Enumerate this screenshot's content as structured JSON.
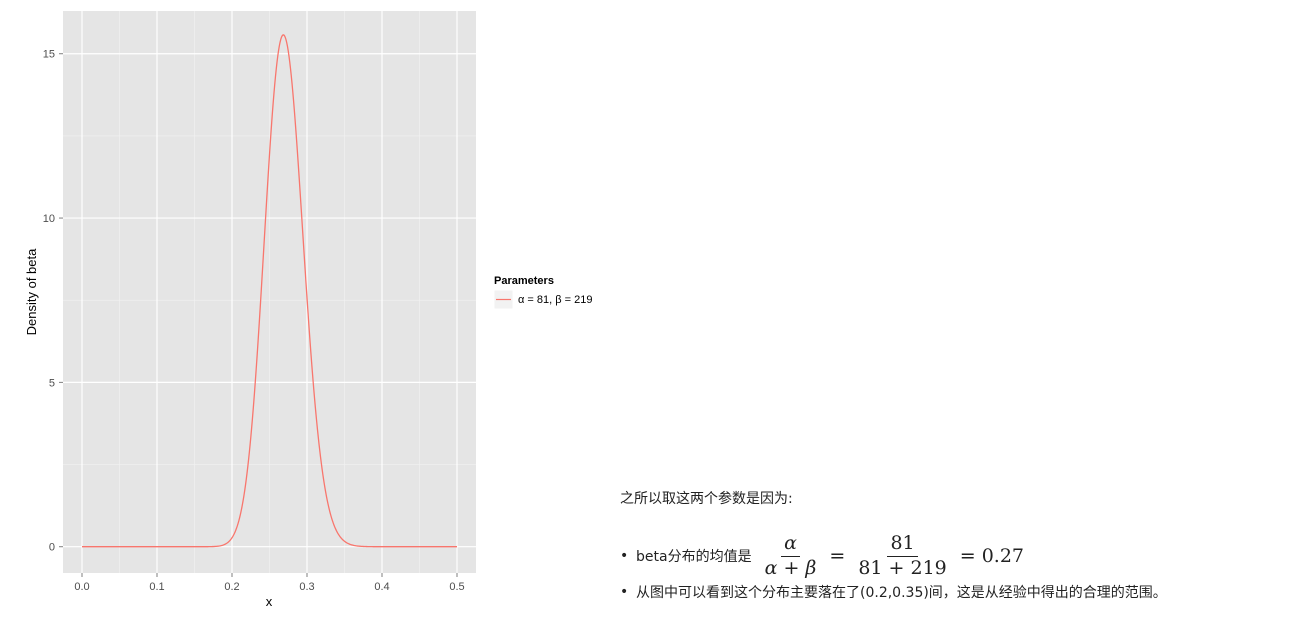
{
  "chart_data": {
    "type": "line",
    "distribution": "beta",
    "xlabel": "x",
    "ylabel": "Density of beta",
    "xlim": [
      0.0,
      0.5
    ],
    "ylim": [
      -0.8,
      16.3
    ],
    "x_ticks": [
      0.0,
      0.1,
      0.2,
      0.3,
      0.4,
      0.5
    ],
    "x_tick_labels": [
      "0.0",
      "0.1",
      "0.2",
      "0.3",
      "0.4",
      "0.5"
    ],
    "y_ticks": [
      0,
      5,
      10,
      15
    ],
    "y_tick_labels": [
      "0",
      "5",
      "10",
      "15"
    ],
    "grid": true,
    "background": "#e5e5e5",
    "legend": {
      "title": "Parameters",
      "position": "right",
      "entries": [
        {
          "label": "α = 81, β = 219",
          "color": "#f8766d"
        }
      ]
    },
    "series": [
      {
        "name": "α = 81, β = 219",
        "color": "#f8766d",
        "alpha": 81,
        "beta": 219
      }
    ]
  },
  "notes": {
    "intro": "之所以取这两个参数是因为:",
    "bullet1_text": "beta分布的均值是",
    "formula": {
      "frac1_num": "α",
      "frac1_den": "α + β",
      "equals1": "=",
      "frac2_num": "81",
      "frac2_den": "81 + 219",
      "equals2": "=",
      "result": "0.27"
    },
    "bullet2_text": "从图中可以看到这个分布主要落在了(0.2,0.35)间，这是从经验中得出的合理的范围。"
  }
}
